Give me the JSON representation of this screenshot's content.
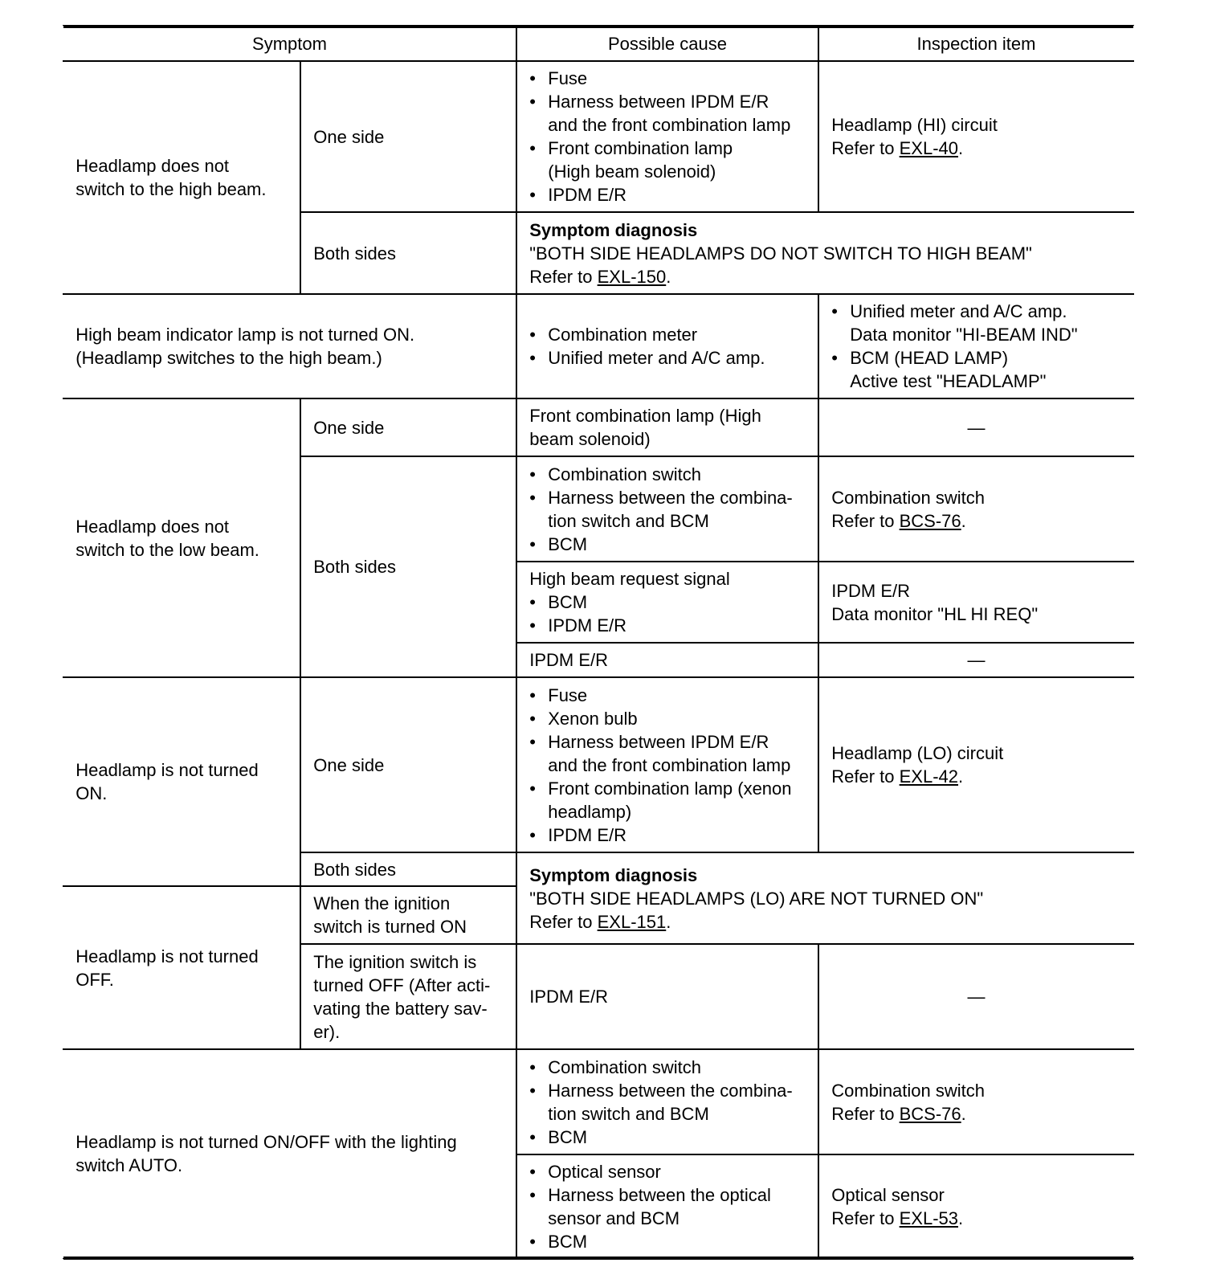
{
  "header": {
    "symptom": "Symptom",
    "cause": "Possible cause",
    "inspection": "Inspection item"
  },
  "cells": {
    "s_high": {
      "lines": [
        "Headlamp does not\nswitch to the high beam."
      ]
    },
    "s_high_one": {
      "lines": [
        "One side"
      ]
    },
    "c_high_one": {
      "bullets": [
        "Fuse",
        "Harness between IPDM E/R\nand the front combination lamp",
        "Front combination lamp\n(High beam solenoid)",
        "IPDM E/R"
      ]
    },
    "i_high_one": {
      "lines": [
        "Headlamp (HI) circuit"
      ],
      "ref": {
        "prefix": "Refer to ",
        "link": "EXL-40",
        "suffix": "."
      }
    },
    "s_high_both": {
      "lines": [
        "Both sides"
      ]
    },
    "d_high_both": {
      "bold": "Symptom diagnosis",
      "lines": [
        " \"BOTH SIDE HEADLAMPS DO NOT SWITCH TO HIGH BEAM\""
      ],
      "ref": {
        "prefix": "Refer to ",
        "link": "EXL-150",
        "suffix": "."
      }
    },
    "s_ind": {
      "lines": [
        "High beam indicator lamp is not turned ON.\n(Headlamp switches to the high beam.)"
      ]
    },
    "c_ind": {
      "bullets": [
        "Combination meter",
        "Unified meter and A/C amp."
      ]
    },
    "i_ind": {
      "bullets": [
        "Unified meter and A/C amp.\nData monitor \"HI-BEAM IND\"",
        "BCM (HEAD LAMP)\nActive test \"HEADLAMP\""
      ]
    },
    "s_low": {
      "lines": [
        "Headlamp does not\nswitch to the low beam."
      ]
    },
    "s_low_one": {
      "lines": [
        "One side"
      ]
    },
    "c_low_one": {
      "lines": [
        "Front combination lamp (High\nbeam solenoid)"
      ]
    },
    "i_low_one": {
      "lines": [
        "—"
      ]
    },
    "s_low_both": {
      "lines": [
        "Both sides"
      ]
    },
    "c_low_both1": {
      "bullets": [
        "Combination switch",
        "Harness between the combina-\ntion switch and BCM",
        "BCM"
      ]
    },
    "i_low_both1": {
      "lines": [
        "Combination switch"
      ],
      "ref": {
        "prefix": "Refer to ",
        "link": "BCS-76",
        "suffix": "."
      }
    },
    "c_low_both2": {
      "lines": [
        "High beam request signal"
      ],
      "bullets": [
        "BCM",
        "IPDM E/R"
      ]
    },
    "i_low_both2": {
      "lines": [
        "IPDM E/R\nData monitor \"HL HI REQ\""
      ]
    },
    "c_low_both3": {
      "lines": [
        "IPDM E/R"
      ]
    },
    "i_low_both3": {
      "lines": [
        "—"
      ]
    },
    "s_on": {
      "lines": [
        "Headlamp is not turned\nON."
      ]
    },
    "s_on_one": {
      "lines": [
        "One side"
      ]
    },
    "c_on_one": {
      "bullets": [
        "Fuse",
        "Xenon bulb",
        "Harness between IPDM E/R\nand the front combination lamp",
        "Front combination lamp (xenon\nheadlamp)",
        "IPDM E/R"
      ]
    },
    "i_on_one": {
      "lines": [
        "Headlamp (LO) circuit"
      ],
      "ref": {
        "prefix": "Refer to ",
        "link": "EXL-42",
        "suffix": "."
      }
    },
    "s_on_both": {
      "lines": [
        "Both sides"
      ]
    },
    "d_on_both": {
      "bold": "Symptom diagnosis",
      "lines": [
        "\"BOTH SIDE HEADLAMPS (LO) ARE NOT TURNED ON\""
      ],
      "ref": {
        "prefix": "Refer to ",
        "link": "EXL-151",
        "suffix": "."
      }
    },
    "s_off": {
      "lines": [
        "Headlamp is not turned\nOFF."
      ]
    },
    "s_off_ign": {
      "lines": [
        "When the ignition\nswitch is turned ON"
      ]
    },
    "s_off_saver": {
      "lines": [
        "The ignition switch is\nturned OFF (After acti-\nvating the battery sav-\ner)."
      ]
    },
    "c_off": {
      "lines": [
        "IPDM E/R"
      ]
    },
    "i_off": {
      "lines": [
        "—"
      ]
    },
    "s_auto": {
      "lines": [
        "Headlamp is not turned ON/OFF with the lighting\nswitch AUTO."
      ]
    },
    "c_auto1": {
      "bullets": [
        "Combination switch",
        "Harness between the combina-\ntion switch and BCM",
        "BCM"
      ]
    },
    "i_auto1": {
      "lines": [
        "Combination switch"
      ],
      "ref": {
        "prefix": "Refer to ",
        "link": "BCS-76",
        "suffix": "."
      }
    },
    "c_auto2": {
      "bullets": [
        "Optical sensor",
        "Harness between the optical\nsensor and BCM",
        "BCM"
      ]
    },
    "i_auto2": {
      "lines": [
        "Optical sensor"
      ],
      "ref": {
        "prefix": "Refer to ",
        "link": "EXL-53",
        "suffix": "."
      }
    }
  }
}
